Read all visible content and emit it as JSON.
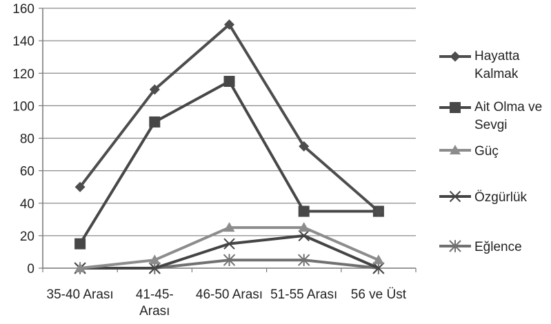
{
  "chart_data": {
    "type": "line",
    "title": "",
    "xlabel": "",
    "ylabel": "",
    "ylim": [
      0,
      160
    ],
    "y_ticks": [
      "0",
      "20",
      "40",
      "60",
      "80",
      "100",
      "120",
      "140",
      "160"
    ],
    "grid": "horizontal",
    "legend_position": "right",
    "categories": [
      [
        "35-40 Arası"
      ],
      [
        "41-45-",
        "Arası"
      ],
      [
        "46-50 Arası"
      ],
      [
        "51-55 Arası"
      ],
      [
        "56 ve Üst"
      ]
    ],
    "series": [
      {
        "name": [
          "Hayatta",
          "Kalmak"
        ],
        "values": [
          50,
          110,
          150,
          75,
          35
        ],
        "marker": "diamond",
        "color": "#4d4d4d"
      },
      {
        "name": [
          "Ait Olma ve",
          "Sevgi"
        ],
        "values": [
          15,
          90,
          115,
          35,
          35
        ],
        "marker": "square",
        "color": "#474747"
      },
      {
        "name": [
          "Güç"
        ],
        "values": [
          0,
          5,
          25,
          25,
          5
        ],
        "marker": "triangle",
        "color": "#8c8c8c"
      },
      {
        "name": [
          "Özgürlük"
        ],
        "values": [
          0,
          0,
          15,
          20,
          0
        ],
        "marker": "x",
        "color": "#444444"
      },
      {
        "name": [
          "Eğlence"
        ],
        "values": [
          0,
          0,
          5,
          5,
          0
        ],
        "marker": "asterisk",
        "color": "#707070"
      }
    ]
  }
}
